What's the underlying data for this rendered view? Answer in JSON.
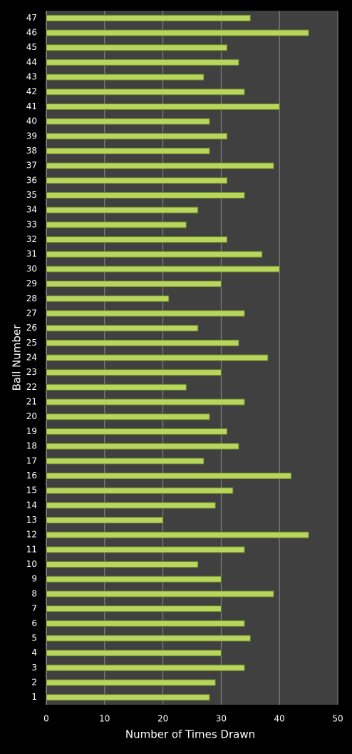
{
  "chart_data": {
    "type": "hbar",
    "x_label": "Number of Times Drawn",
    "y_label": "Ball Number",
    "categories": [
      "1",
      "2",
      "3",
      "4",
      "5",
      "6",
      "7",
      "8",
      "9",
      "10",
      "11",
      "12",
      "13",
      "14",
      "15",
      "16",
      "17",
      "18",
      "19",
      "20",
      "21",
      "22",
      "23",
      "24",
      "25",
      "26",
      "27",
      "28",
      "29",
      "30",
      "31",
      "32",
      "33",
      "34",
      "35",
      "36",
      "37",
      "38",
      "39",
      "40",
      "41",
      "42",
      "43",
      "44",
      "45",
      "46",
      "47"
    ],
    "values": [
      28,
      29,
      34,
      30,
      35,
      34,
      30,
      39,
      30,
      26,
      34,
      45,
      20,
      29,
      32,
      42,
      27,
      33,
      31,
      28,
      34,
      24,
      30,
      38,
      33,
      26,
      34,
      21,
      30,
      40,
      37,
      31,
      24,
      26,
      34,
      31,
      39,
      28,
      31,
      28,
      40,
      34,
      27,
      33,
      31,
      45,
      35
    ],
    "color": "#b8d65e",
    "xlim": [
      0,
      50
    ],
    "xticks": [
      0,
      10,
      20,
      30,
      40,
      50
    ],
    "grid": true
  }
}
